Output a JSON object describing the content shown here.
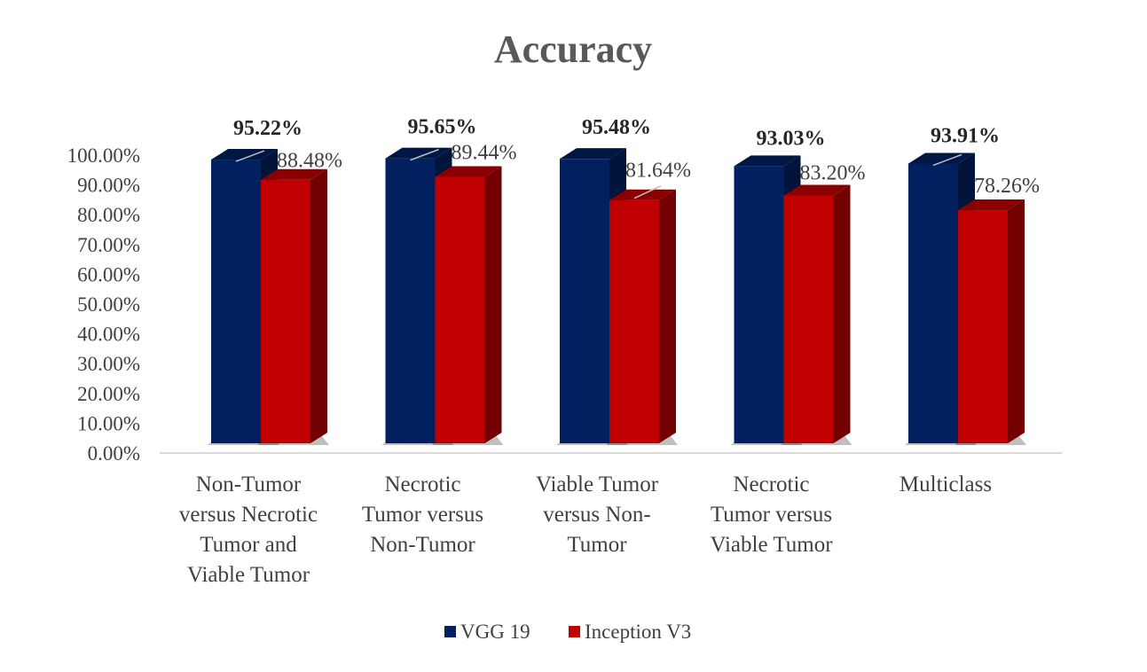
{
  "chart_data": {
    "type": "bar",
    "title": "Accuracy",
    "categories": [
      [
        "Non-Tumor",
        "versus Necrotic",
        "Tumor and",
        "Viable Tumor"
      ],
      [
        "Necrotic",
        "Tumor versus",
        "Non-Tumor"
      ],
      [
        "Viable Tumor",
        "versus Non-",
        "Tumor"
      ],
      [
        "Necrotic",
        "Tumor versus",
        "Viable Tumor"
      ],
      [
        "Multiclass"
      ]
    ],
    "series": [
      {
        "name": "VGG 19",
        "color": "#002060",
        "values": [
          95.22,
          95.65,
          95.48,
          93.03,
          93.91
        ],
        "labels": [
          "95.22%",
          "95.65%",
          "95.48%",
          "93.03%",
          "93.91%"
        ]
      },
      {
        "name": "Inception V3",
        "color": "#C00000",
        "values": [
          88.48,
          89.44,
          81.64,
          83.2,
          78.26
        ],
        "labels": [
          "88.48%",
          "89.44%",
          "81.64%",
          "83.20%",
          "78.26%"
        ]
      }
    ],
    "ylim": [
      0,
      100
    ],
    "yticks": [
      "0.00%",
      "10.00%",
      "20.00%",
      "30.00%",
      "40.00%",
      "50.00%",
      "60.00%",
      "70.00%",
      "80.00%",
      "90.00%",
      "100.00%"
    ],
    "grid": false,
    "legend": "bottom",
    "style": "3d-clustered-column"
  }
}
